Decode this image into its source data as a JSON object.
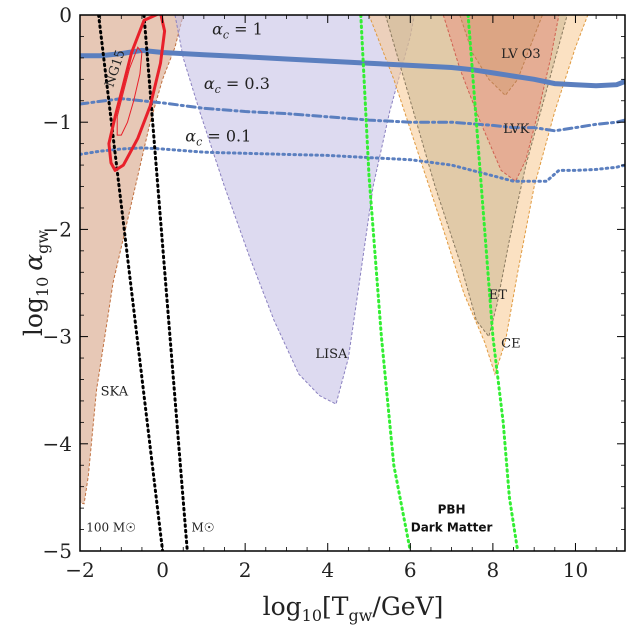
{
  "chart_data": {
    "type": "area",
    "xlabel": "log10[Tgw/GeV]",
    "xlabel_parts": {
      "prefix": "log",
      "sub": "10",
      "main": "[T",
      "main_sub": "gw",
      "suffix": "/GeV]"
    },
    "ylabel": "log10 αgw",
    "ylabel_parts": {
      "prefix": "log",
      "sub": "10",
      "greek": "α",
      "greek_sub": "gw"
    },
    "xlim": [
      -2,
      11.2
    ],
    "ylim": [
      -5,
      0
    ],
    "x_ticks": [
      -2,
      0,
      2,
      4,
      6,
      8,
      10
    ],
    "x_tick_labels": [
      "−2",
      "0",
      "2",
      "4",
      "6",
      "8",
      "10"
    ],
    "y_ticks": [
      0,
      -1,
      -2,
      -3,
      -4,
      -5
    ],
    "y_tick_labels": [
      "0",
      "−1",
      "−2",
      "−3",
      "−4",
      "−5"
    ],
    "regions": [
      {
        "name": "SKA",
        "color": "#d39b7a",
        "opacity": 0.55,
        "stroke": "#c0703f",
        "polygon": [
          [
            -2,
            0
          ],
          [
            -2,
            -4.55
          ],
          [
            -1.9,
            -4.56
          ],
          [
            -1.8,
            -4.3
          ],
          [
            -1.7,
            -3.9
          ],
          [
            -1.6,
            -3.5
          ],
          [
            -1.4,
            -3.0
          ],
          [
            -1.2,
            -2.5
          ],
          [
            -0.9,
            -2.0
          ],
          [
            -0.6,
            -1.5
          ],
          [
            -0.3,
            -1.0
          ],
          [
            0.0,
            -0.6
          ],
          [
            0.3,
            -0.3
          ],
          [
            0.5,
            0
          ]
        ],
        "label": "SKA",
        "label_at": [
          -1.5,
          -3.55
        ]
      },
      {
        "name": "LISA",
        "color": "#c7c1e6",
        "opacity": 0.6,
        "stroke": "#8a80c0",
        "polygon": [
          [
            0.3,
            0
          ],
          [
            0.5,
            -0.4
          ],
          [
            0.9,
            -0.9
          ],
          [
            1.5,
            -1.6
          ],
          [
            2.1,
            -2.25
          ],
          [
            2.7,
            -2.85
          ],
          [
            3.3,
            -3.35
          ],
          [
            3.8,
            -3.55
          ],
          [
            4.2,
            -3.63
          ],
          [
            4.5,
            -3.2
          ],
          [
            4.8,
            -2.4
          ],
          [
            5.1,
            -1.6
          ],
          [
            5.5,
            -0.9
          ],
          [
            6.0,
            -0.2
          ],
          [
            6.1,
            0
          ]
        ],
        "label": "LISA",
        "label_at": [
          3.7,
          -3.2
        ]
      },
      {
        "name": "CE",
        "color": "#f7c98f",
        "opacity": 0.55,
        "stroke": "#e09a40",
        "polygon": [
          [
            5.0,
            0
          ],
          [
            5.6,
            -0.6
          ],
          [
            6.2,
            -1.3
          ],
          [
            6.8,
            -2.0
          ],
          [
            7.3,
            -2.6
          ],
          [
            7.8,
            -3.05
          ],
          [
            8.05,
            -3.35
          ],
          [
            8.3,
            -3.05
          ],
          [
            8.6,
            -2.4
          ],
          [
            9.0,
            -1.6
          ],
          [
            9.5,
            -0.9
          ],
          [
            10.0,
            -0.3
          ],
          [
            10.3,
            0
          ]
        ],
        "label": "CE",
        "label_at": [
          8.2,
          -3.1
        ]
      },
      {
        "name": "ET",
        "color": "#c8b48e",
        "opacity": 0.5,
        "stroke": "#8a7a60",
        "polygon": [
          [
            5.4,
            0
          ],
          [
            6.0,
            -0.8
          ],
          [
            6.6,
            -1.6
          ],
          [
            7.2,
            -2.3
          ],
          [
            7.6,
            -2.85
          ],
          [
            7.9,
            -3.0
          ],
          [
            8.1,
            -2.7
          ],
          [
            8.4,
            -2.1
          ],
          [
            8.8,
            -1.4
          ],
          [
            9.3,
            -0.7
          ],
          [
            9.8,
            0
          ]
        ],
        "label": "ET",
        "label_at": [
          7.9,
          -2.65
        ]
      },
      {
        "name": "LVK",
        "color": "#e99583",
        "opacity": 0.55,
        "stroke": "#d06050",
        "polygon": [
          [
            6.8,
            0
          ],
          [
            7.2,
            -0.5
          ],
          [
            7.7,
            -1.0
          ],
          [
            8.2,
            -1.45
          ],
          [
            8.55,
            -1.55
          ],
          [
            8.8,
            -1.35
          ],
          [
            9.1,
            -0.9
          ],
          [
            9.4,
            -0.4
          ],
          [
            9.6,
            0
          ]
        ],
        "label": "LVK",
        "label_at": [
          8.25,
          -1.1
        ]
      },
      {
        "name": "LV O3",
        "color": "#d6a07a",
        "opacity": 0.6,
        "stroke": "#c08050",
        "polygon": [
          [
            7.2,
            0
          ],
          [
            7.5,
            -0.35
          ],
          [
            7.9,
            -0.6
          ],
          [
            8.3,
            -0.75
          ],
          [
            8.6,
            -0.6
          ],
          [
            8.9,
            -0.3
          ],
          [
            9.2,
            0
          ]
        ],
        "label": "LV O3",
        "label_at": [
          8.2,
          -0.4
        ]
      }
    ],
    "series": [
      {
        "name": "αc = 1",
        "style": "solid",
        "color": "#5b7fbf",
        "width": 5,
        "x": [
          -2,
          -1.5,
          -1.0,
          -0.5,
          0,
          1,
          2,
          3,
          4,
          5,
          6,
          7,
          7.5,
          8,
          8.5,
          9,
          9.5,
          10,
          10.5,
          11,
          11.2
        ],
        "y": [
          -0.38,
          -0.38,
          -0.36,
          -0.33,
          -0.35,
          -0.37,
          -0.39,
          -0.41,
          -0.43,
          -0.45,
          -0.47,
          -0.49,
          -0.51,
          -0.54,
          -0.57,
          -0.6,
          -0.64,
          -0.65,
          -0.66,
          -0.65,
          -0.62
        ]
      },
      {
        "name": "αc = 0.3",
        "style": "dashdot",
        "color": "#5b7fbf",
        "width": 3,
        "x": [
          -2,
          -1,
          0,
          1,
          2,
          3,
          4,
          5,
          6,
          7,
          8,
          8.5,
          9,
          9.5,
          10,
          10.5,
          11,
          11.2
        ],
        "y": [
          -0.83,
          -0.78,
          -0.82,
          -0.87,
          -0.9,
          -0.92,
          -0.95,
          -0.98,
          -1.0,
          -1.0,
          -1.03,
          -1.05,
          -1.05,
          -1.08,
          -1.05,
          -1.02,
          -1.0,
          -0.98
        ]
      },
      {
        "name": "αc = 0.1",
        "style": "dotted",
        "color": "#5b7fbf",
        "width": 3,
        "x": [
          -2,
          -1.5,
          -1,
          -0.5,
          0,
          1,
          2,
          3,
          4,
          5,
          6,
          7,
          8,
          8.5,
          9,
          9.3,
          9.6,
          10,
          10.5,
          11,
          11.2
        ],
        "y": [
          -1.3,
          -1.27,
          -1.25,
          -1.24,
          -1.25,
          -1.28,
          -1.29,
          -1.3,
          -1.31,
          -1.33,
          -1.35,
          -1.4,
          -1.5,
          -1.55,
          -1.55,
          -1.55,
          -1.45,
          -1.45,
          -1.44,
          -1.42,
          -1.4
        ]
      },
      {
        "name": "100 M☉",
        "style": "dotted",
        "color": "#000000",
        "width": 3,
        "x": [
          -1.55,
          0.0
        ],
        "y": [
          0,
          -5.0
        ]
      },
      {
        "name": "M☉",
        "style": "dotted",
        "color": "#000000",
        "width": 3,
        "x": [
          -0.45,
          0.6
        ],
        "y": [
          0,
          -5.0
        ]
      },
      {
        "name": "PBH DM left",
        "style": "dotted",
        "color": "#33ee33",
        "width": 3,
        "x": [
          4.8,
          5.0,
          5.3,
          5.6,
          6.0
        ],
        "y": [
          0,
          -1.5,
          -3.0,
          -4.2,
          -5.0
        ]
      },
      {
        "name": "PBH DM right",
        "style": "dotted",
        "color": "#33ee33",
        "width": 3,
        "x": [
          7.4,
          7.7,
          8.0,
          8.25,
          8.4,
          8.6
        ],
        "y": [
          0,
          -1.5,
          -3.0,
          -3.8,
          -4.5,
          -5.0
        ]
      }
    ],
    "ng15": {
      "name": "NG15",
      "outer": [
        [
          -1.25,
          -1.38
        ],
        [
          -1.3,
          -1.2
        ],
        [
          -1.15,
          -0.95
        ],
        [
          -0.95,
          -0.65
        ],
        [
          -0.75,
          -0.35
        ],
        [
          -0.45,
          -0.05
        ],
        [
          -0.05,
          0.02
        ],
        [
          0.05,
          -0.15
        ],
        [
          -0.05,
          -0.45
        ],
        [
          -0.3,
          -0.85
        ],
        [
          -0.6,
          -1.15
        ],
        [
          -0.95,
          -1.4
        ],
        [
          -1.15,
          -1.45
        ]
      ],
      "inner": [
        [
          -1.1,
          -1.12
        ],
        [
          -1.1,
          -0.95
        ],
        [
          -0.95,
          -0.72
        ],
        [
          -0.8,
          -0.5
        ],
        [
          -0.6,
          -0.3
        ],
        [
          -0.5,
          -0.35
        ],
        [
          -0.55,
          -0.55
        ],
        [
          -0.7,
          -0.8
        ],
        [
          -0.85,
          -1.0
        ],
        [
          -1.0,
          -1.12
        ]
      ],
      "label": "NG15",
      "label_at": [
        -1.2,
        -0.68
      ],
      "color": "#e8202a"
    },
    "annotations": {
      "alpha1": {
        "pre": "α",
        "sub": "c",
        "post": " = 1",
        "at": [
          1.2,
          -0.18
        ]
      },
      "alpha03": {
        "pre": "α",
        "sub": "c",
        "post": " = 0.3",
        "at": [
          1.0,
          -0.69
        ]
      },
      "alpha01": {
        "pre": "α",
        "sub": "c",
        "post": " = 0.1",
        "at": [
          0.55,
          -1.18
        ]
      },
      "mass100": {
        "text": "100 M☉",
        "at": [
          -1.85,
          -4.82
        ]
      },
      "mass1": {
        "text": "M☉",
        "at": [
          0.7,
          -4.82
        ]
      },
      "pbh1": {
        "text": "PBH",
        "at": [
          7.0,
          -4.65
        ]
      },
      "pbh2": {
        "text": "Dark Matter",
        "at": [
          7.0,
          -4.82
        ]
      }
    }
  }
}
